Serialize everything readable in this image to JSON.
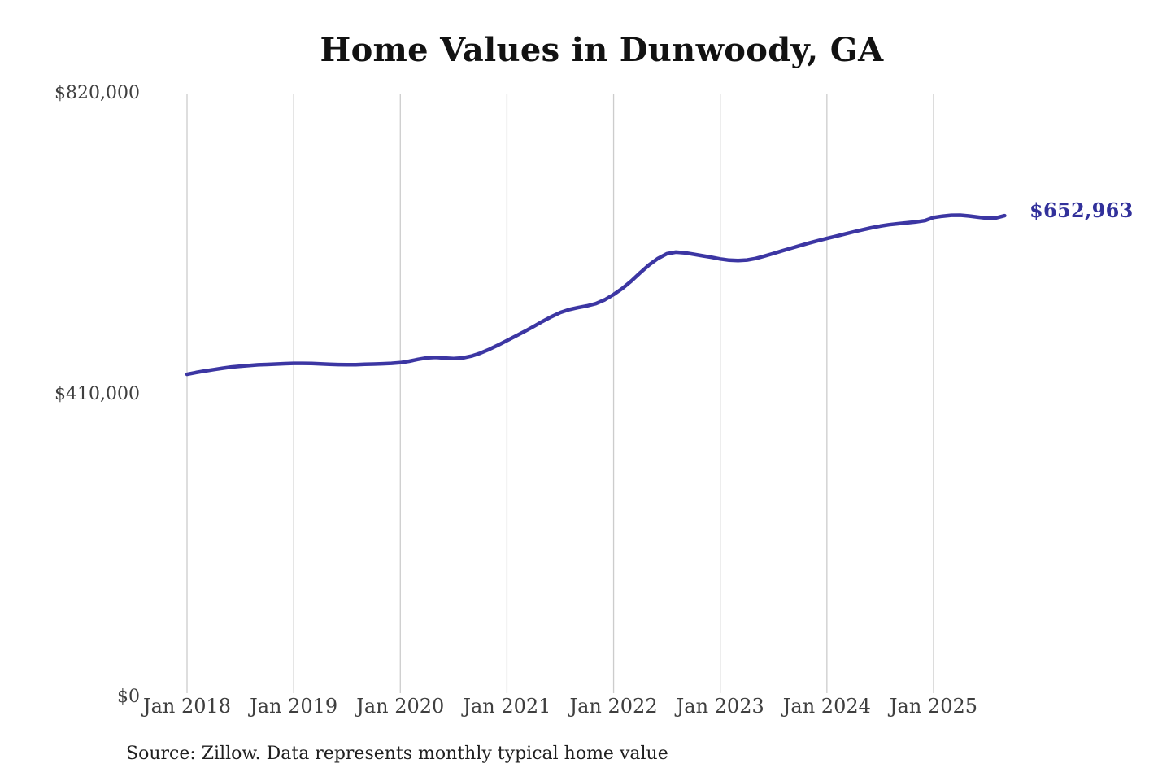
{
  "title": "Home Values in Dunwoody, GA",
  "source_note": "Source: Zillow. Data represents monthly typical home value",
  "end_label": "$652,963",
  "colors": {
    "line": "#3c36a3",
    "end_label": "#32319b",
    "grid": "#cccccc",
    "tick_text": "#3f3f3f",
    "title_text": "#121212",
    "source_text": "#1f1f1f",
    "background": "#ffffff"
  },
  "chart_data": {
    "type": "line",
    "title": "Home Values in Dunwoody, GA",
    "xlabel": "",
    "ylabel": "",
    "ylim": [
      0,
      820000
    ],
    "grid": "vertical-only",
    "legend": "none",
    "x_start_month": "2018-01",
    "x_end_month": "2025-09",
    "x_tick_labels": [
      "Jan 2018",
      "Jan 2019",
      "Jan 2020",
      "Jan 2021",
      "Jan 2022",
      "Jan 2023",
      "Jan 2024",
      "Jan 2025"
    ],
    "y_tick_labels": [
      "$820,000",
      "$410,000",
      "$0"
    ],
    "y_tick_values": [
      820000,
      410000,
      0
    ],
    "end_value": 652963,
    "series": [
      {
        "name": "Typical home value",
        "frequency": "monthly",
        "values": [
          436000,
          438500,
          440600,
          442500,
          444400,
          446000,
          447200,
          448200,
          449000,
          449500,
          450000,
          450600,
          451000,
          451100,
          450800,
          450300,
          449800,
          449400,
          449200,
          449300,
          449700,
          450100,
          450500,
          451100,
          452000,
          454000,
          456500,
          458500,
          459200,
          458300,
          457500,
          458400,
          461000,
          465000,
          470200,
          476000,
          482200,
          488400,
          494800,
          501500,
          508300,
          514800,
          520600,
          524600,
          527300,
          529600,
          532700,
          538000,
          545200,
          553600,
          563600,
          575000,
          585800,
          594600,
          600900,
          603100,
          602300,
          600300,
          598100,
          596100,
          593800,
          592100,
          591600,
          592400,
          594500,
          597800,
          601400,
          605000,
          608600,
          612200,
          615600,
          618800,
          621800,
          624800,
          627800,
          630800,
          633800,
          636400,
          638700,
          640600,
          642000,
          643200,
          644400,
          646200,
          650500,
          652300,
          653600,
          653700,
          652600,
          651000,
          649500,
          649900,
          652963
        ]
      }
    ]
  }
}
